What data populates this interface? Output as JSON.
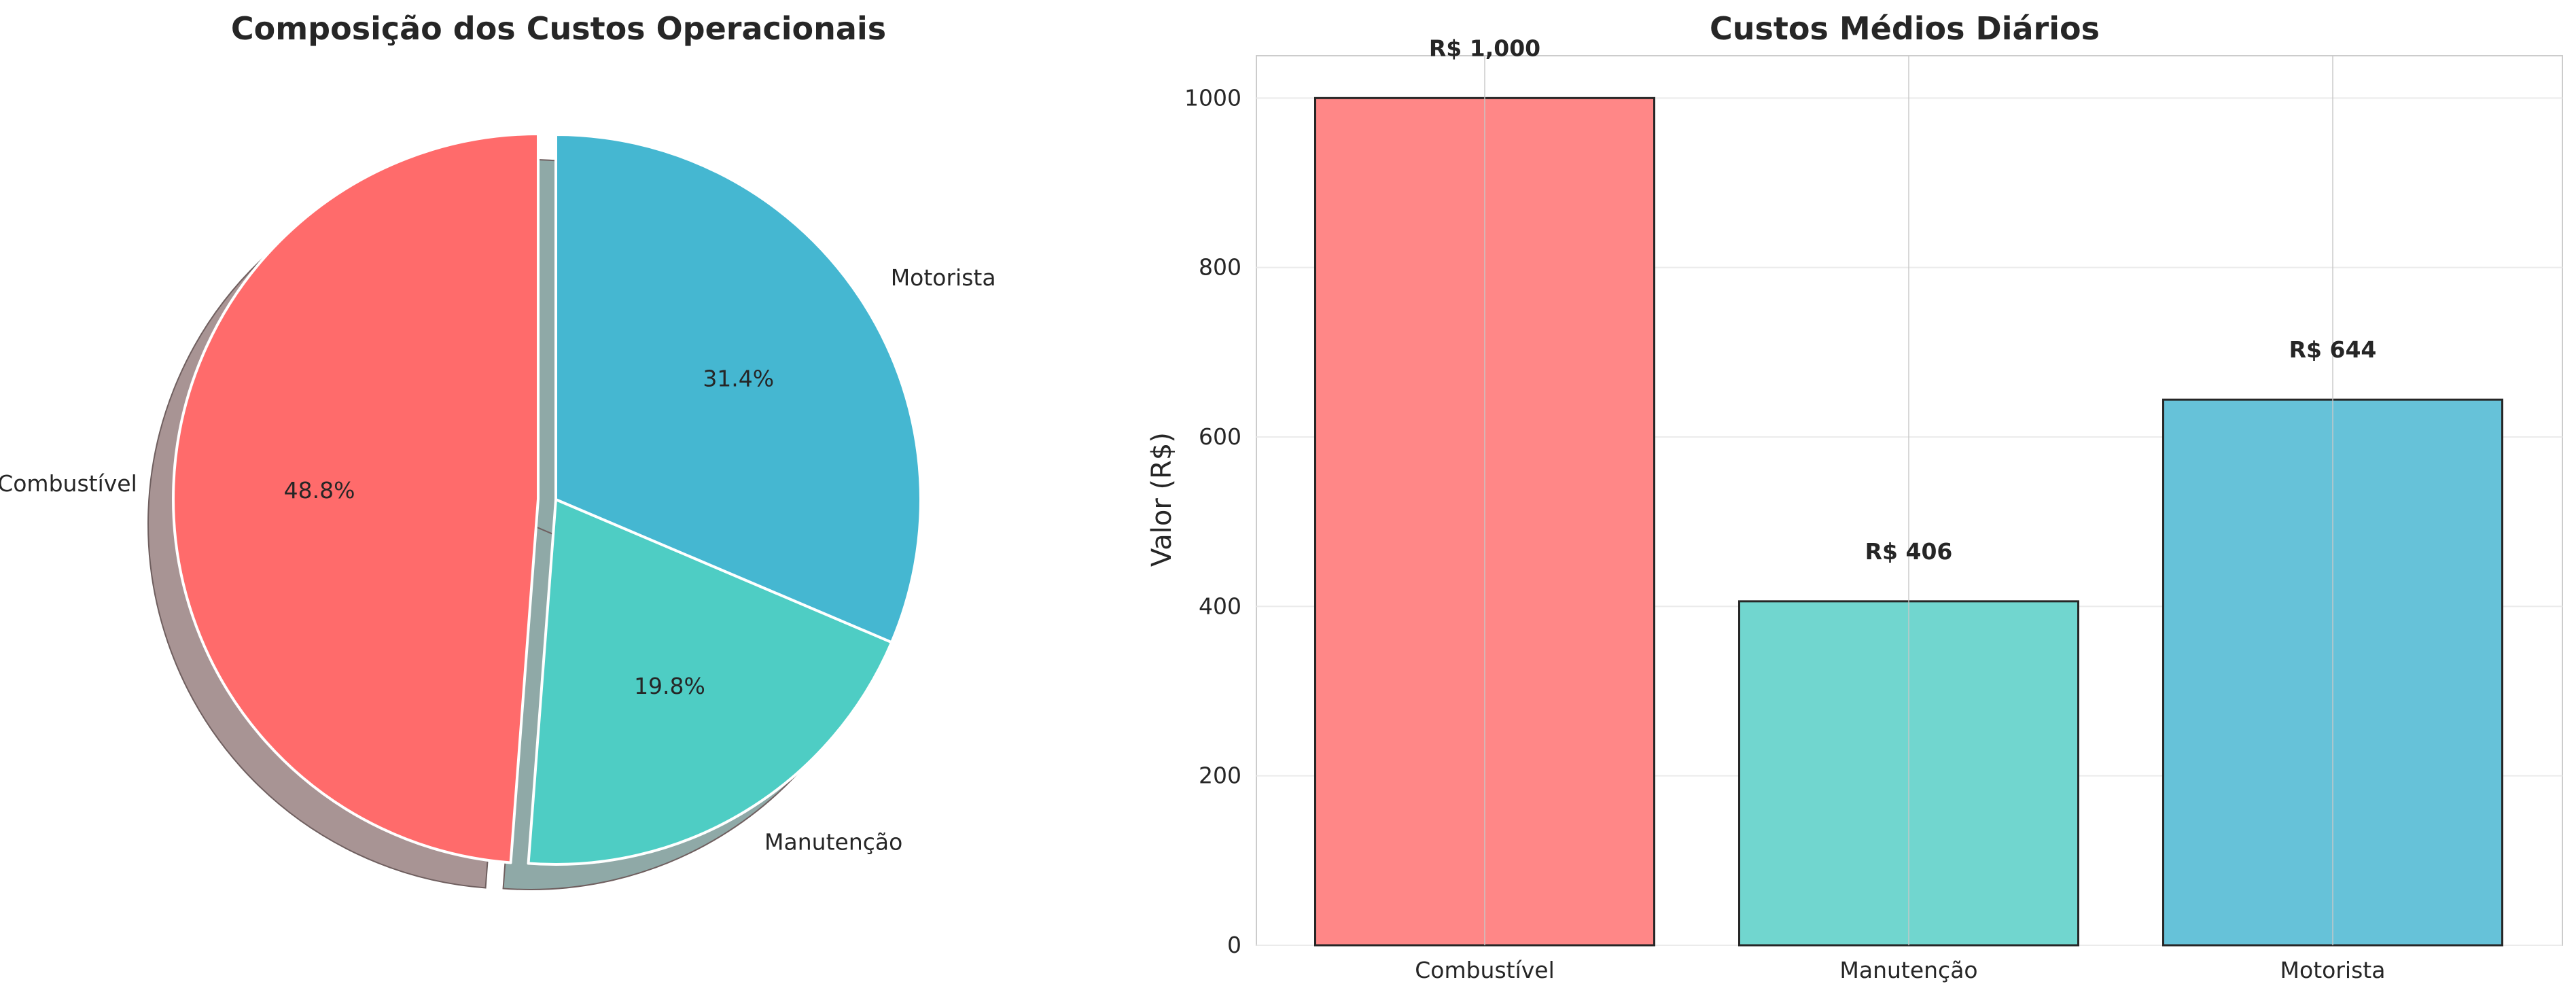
{
  "chart_data": [
    {
      "type": "pie",
      "title": "Composição dos Custos Operacionais",
      "categories": [
        "Combustível",
        "Manutenção",
        "Motorista"
      ],
      "values": [
        48.8,
        19.8,
        31.4
      ],
      "value_labels": [
        "48.8%",
        "19.8%",
        "31.4%"
      ],
      "colors": [
        "#FF6B6B",
        "#4ECDC4",
        "#45B7D1"
      ],
      "exploded": [
        "Combustível"
      ],
      "shadow": true,
      "start_angle_deg": 90,
      "direction": "counterclockwise"
    },
    {
      "type": "bar",
      "title": "Custos Médios Diários",
      "categories": [
        "Combustível",
        "Manutenção",
        "Motorista"
      ],
      "values": [
        1000,
        406,
        644
      ],
      "value_labels": [
        "R$ 1,000",
        "R$ 406",
        "R$ 644"
      ],
      "colors": [
        "#FF6B6B",
        "#4ECDC4",
        "#45B7D1"
      ],
      "xlabel": "",
      "ylabel": "Valor (R$)",
      "ylim": [
        0,
        1050
      ],
      "yticks": [
        0,
        200,
        400,
        600,
        800,
        1000
      ],
      "grid": true
    }
  ]
}
